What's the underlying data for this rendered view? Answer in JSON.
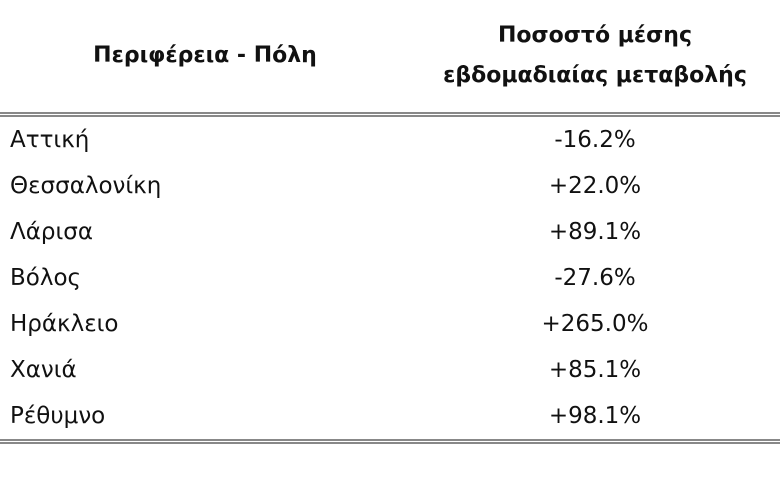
{
  "table": {
    "header": [
      "Περιφέρεια - Πόλη",
      "Ποσοστό μέσης εβδομαδιαίας μεταβολής"
    ],
    "rows": [
      [
        "Αττική",
        "-16.2%"
      ],
      [
        "Θεσσαλονίκη",
        "+22.0%"
      ],
      [
        "Λάρισα",
        "+89.1%"
      ],
      [
        "Βόλος",
        "-27.6%"
      ],
      [
        "Ηράκλειο",
        "+265.0%"
      ],
      [
        "Χανιά",
        "+85.1%"
      ],
      [
        "Ρέθυμνο",
        "+98.1%"
      ]
    ]
  }
}
